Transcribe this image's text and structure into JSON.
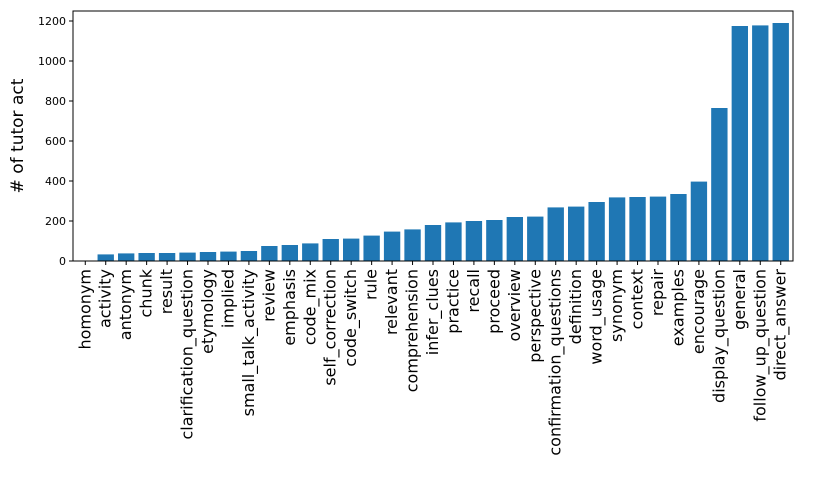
{
  "chart_data": {
    "type": "bar",
    "title": "",
    "xlabel": "",
    "ylabel": "# of tutor act",
    "ylim": [
      0,
      1250
    ],
    "yticks": [
      0,
      200,
      400,
      600,
      800,
      1000,
      1200
    ],
    "grid": false,
    "bar_color": "#1f77b4",
    "categories": [
      "homonym",
      "activity",
      "antonym",
      "chunk",
      "result",
      "clarification_question",
      "etymology",
      "implied",
      "small_talk_activity",
      "review",
      "emphasis",
      "code_mix",
      "self_correction",
      "code_switch",
      "rule",
      "relevant",
      "comprehension",
      "infer_clues",
      "practice",
      "recall",
      "proceed",
      "overview",
      "perspective",
      "confirmation_questions",
      "definition",
      "word_usage",
      "synonym",
      "context",
      "repair",
      "examples",
      "encourage",
      "display_question",
      "general",
      "follow_up_question",
      "direct_answer"
    ],
    "values": [
      2,
      33,
      38,
      40,
      40,
      42,
      45,
      47,
      50,
      75,
      80,
      88,
      110,
      112,
      127,
      147,
      158,
      180,
      193,
      200,
      205,
      220,
      222,
      268,
      272,
      295,
      318,
      320,
      322,
      335,
      397,
      765,
      1175,
      1178,
      1190
    ]
  }
}
